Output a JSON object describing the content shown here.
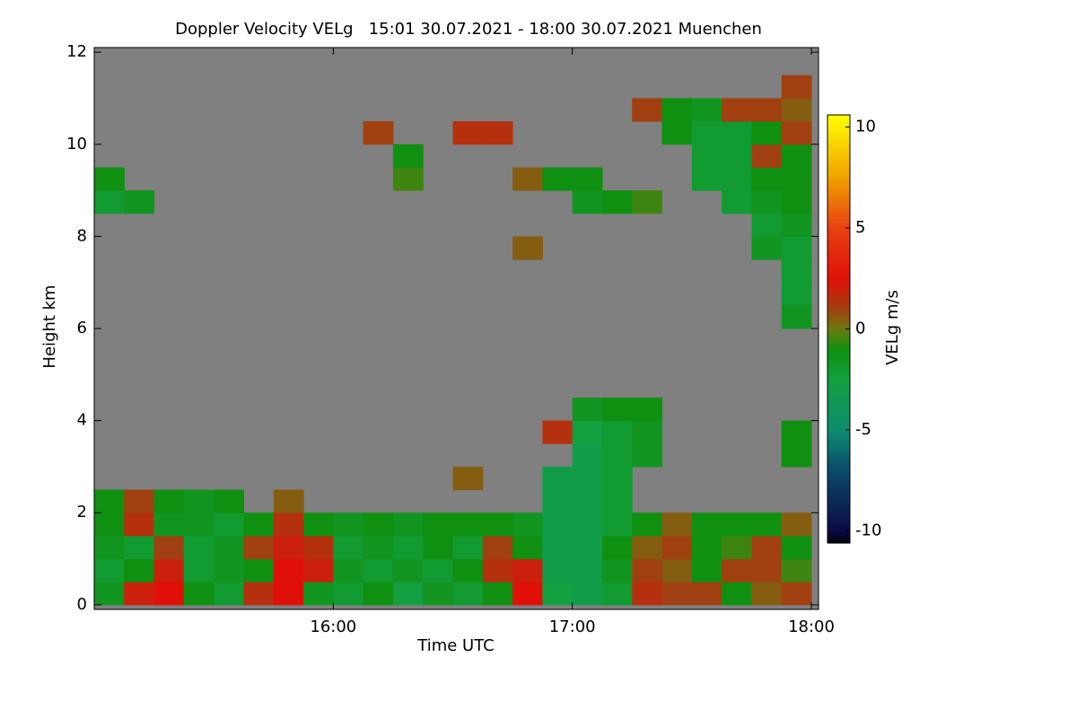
{
  "chart_data": {
    "type": "heatmap",
    "title": "Doppler Velocity VELg   15:01 30.07.2021 - 18:00 30.07.2021 Muenchen",
    "x_label": "Time UTC",
    "y_label": "Height km",
    "colorbar_label": "VELg m/s",
    "xlim": [
      15.0,
      18.03
    ],
    "ylim": [
      -0.1,
      12.1
    ],
    "xticks": [
      {
        "value": 16,
        "label": "16:00"
      },
      {
        "value": 17,
        "label": "17:00"
      },
      {
        "value": 18,
        "label": "18:00"
      }
    ],
    "yticks": [
      0,
      2,
      4,
      6,
      8,
      10,
      12
    ],
    "clim": [
      -10.6,
      10.6
    ],
    "cticks": [
      -10,
      -5,
      0,
      5,
      10
    ],
    "nan_color": "#808080",
    "colorscale": [
      [
        -10.6,
        "#000000"
      ],
      [
        -10,
        "#0a0a45"
      ],
      [
        -7,
        "#0a4a6a"
      ],
      [
        -5,
        "#0e8c70"
      ],
      [
        -2.5,
        "#12a040"
      ],
      [
        -1,
        "#109010"
      ],
      [
        0,
        "#6a7a10"
      ],
      [
        1,
        "#a04010"
      ],
      [
        2.5,
        "#e01008"
      ],
      [
        5,
        "#e84010"
      ],
      [
        7.5,
        "#f0a000"
      ],
      [
        10.6,
        "#ffff00"
      ]
    ],
    "x": [
      15.0625,
      15.1875,
      15.3125,
      15.4375,
      15.5625,
      15.6875,
      15.8125,
      15.9375,
      16.0625,
      16.1875,
      16.3125,
      16.4375,
      16.5625,
      16.6875,
      16.8125,
      16.9375,
      17.0625,
      17.1875,
      17.3125,
      17.4375,
      17.5625,
      17.6875,
      17.8125,
      17.9375
    ],
    "y": [
      0.25,
      0.75,
      1.25,
      1.75,
      2.25,
      2.75,
      3.25,
      3.75,
      4.25,
      4.75,
      5.25,
      5.75,
      6.25,
      6.75,
      7.25,
      7.75,
      8.25,
      8.75,
      9.25,
      9.75,
      10.25,
      10.75,
      11.25,
      11.75
    ],
    "z": [
      [
        -1.5,
        2,
        2.5,
        -1,
        -2,
        1.5,
        2.5,
        -1.5,
        -2,
        -1,
        -2.5,
        -1.5,
        -2,
        -1,
        2.5,
        -2.5,
        -3,
        -2,
        1.5,
        1,
        1,
        -1,
        0.5,
        1
      ],
      [
        -2,
        -1,
        2,
        -2,
        -1.5,
        -1,
        2.5,
        2,
        -1.5,
        -2,
        -1.5,
        -2,
        -1,
        1.5,
        2,
        -3,
        -3,
        -1.5,
        1,
        0.5,
        -1,
        1,
        1,
        -0.5
      ],
      [
        -1.5,
        -2,
        1,
        -2,
        -1.5,
        1,
        2,
        1.5,
        -2,
        -1.5,
        -2,
        -1,
        -2,
        1,
        -1,
        -3,
        -3,
        -1,
        0.5,
        1,
        -1,
        -0.5,
        1,
        -1
      ],
      [
        -1,
        1.5,
        -1.5,
        -1.5,
        -2,
        -1,
        1.5,
        -1,
        -1.5,
        -1,
        -1.5,
        -1,
        -1,
        -1,
        -1.5,
        -3,
        -3,
        -2,
        -1,
        0.5,
        -1,
        -1,
        -1,
        0.5
      ],
      [
        -1,
        1,
        -1,
        -1.5,
        -1,
        null,
        0.5,
        null,
        null,
        null,
        null,
        null,
        null,
        null,
        null,
        -3,
        -3,
        -2,
        null,
        null,
        null,
        null,
        null,
        null
      ],
      [
        null,
        null,
        null,
        null,
        null,
        null,
        null,
        null,
        null,
        null,
        null,
        null,
        0.5,
        null,
        null,
        -3,
        -3,
        -2,
        null,
        null,
        null,
        null,
        null,
        null
      ],
      [
        null,
        null,
        null,
        null,
        null,
        null,
        null,
        null,
        null,
        null,
        null,
        null,
        null,
        null,
        null,
        null,
        -3,
        -2,
        -1.5,
        null,
        null,
        null,
        null,
        -1
      ],
      [
        null,
        null,
        null,
        null,
        null,
        null,
        null,
        null,
        null,
        null,
        null,
        null,
        null,
        null,
        null,
        1.5,
        -2.5,
        -2,
        -1.5,
        null,
        null,
        null,
        null,
        -1
      ],
      [
        null,
        null,
        null,
        null,
        null,
        null,
        null,
        null,
        null,
        null,
        null,
        null,
        null,
        null,
        null,
        null,
        -1.5,
        -1,
        -1,
        null,
        null,
        null,
        null,
        null
      ],
      [
        null,
        null,
        null,
        null,
        null,
        null,
        null,
        null,
        null,
        null,
        null,
        null,
        null,
        null,
        null,
        null,
        null,
        null,
        null,
        null,
        null,
        null,
        null,
        null
      ],
      [
        null,
        null,
        null,
        null,
        null,
        null,
        null,
        null,
        null,
        null,
        null,
        null,
        null,
        null,
        null,
        null,
        null,
        null,
        null,
        null,
        null,
        null,
        null,
        null
      ],
      [
        null,
        null,
        null,
        null,
        null,
        null,
        null,
        null,
        null,
        null,
        null,
        null,
        null,
        null,
        null,
        null,
        null,
        null,
        null,
        null,
        null,
        null,
        null,
        null
      ],
      [
        null,
        null,
        null,
        null,
        null,
        null,
        null,
        null,
        null,
        null,
        null,
        null,
        null,
        null,
        null,
        null,
        null,
        null,
        null,
        null,
        null,
        null,
        null,
        -1.5
      ],
      [
        null,
        null,
        null,
        null,
        null,
        null,
        null,
        null,
        null,
        null,
        null,
        null,
        null,
        null,
        null,
        null,
        null,
        null,
        null,
        null,
        null,
        null,
        null,
        -2
      ],
      [
        null,
        null,
        null,
        null,
        null,
        null,
        null,
        null,
        null,
        null,
        null,
        null,
        null,
        null,
        null,
        null,
        null,
        null,
        null,
        null,
        null,
        null,
        null,
        -2
      ],
      [
        null,
        null,
        null,
        null,
        null,
        null,
        null,
        null,
        null,
        null,
        null,
        null,
        null,
        null,
        0.5,
        null,
        null,
        null,
        null,
        null,
        null,
        null,
        -1.5,
        -2
      ],
      [
        null,
        null,
        null,
        null,
        null,
        null,
        null,
        null,
        null,
        null,
        null,
        null,
        null,
        null,
        null,
        null,
        null,
        null,
        null,
        null,
        null,
        null,
        -2,
        -1.5
      ],
      [
        -2,
        -1.5,
        null,
        null,
        null,
        null,
        null,
        null,
        null,
        null,
        null,
        null,
        null,
        null,
        null,
        null,
        -1.5,
        -1,
        -0.5,
        null,
        null,
        -2,
        -1.5,
        -1
      ],
      [
        -1,
        null,
        null,
        null,
        null,
        null,
        null,
        null,
        null,
        null,
        -0.5,
        null,
        null,
        null,
        0.5,
        -1,
        -1,
        null,
        null,
        null,
        -2,
        -2,
        -1,
        -1
      ],
      [
        null,
        null,
        null,
        null,
        null,
        null,
        null,
        null,
        null,
        null,
        -1,
        null,
        null,
        null,
        null,
        null,
        null,
        null,
        null,
        null,
        -2,
        -2,
        1,
        -1
      ],
      [
        null,
        null,
        null,
        null,
        null,
        null,
        null,
        null,
        null,
        1,
        null,
        null,
        1.5,
        1.5,
        null,
        null,
        null,
        null,
        null,
        -1,
        -2,
        -2,
        -1,
        1
      ],
      [
        null,
        null,
        null,
        null,
        null,
        null,
        null,
        null,
        null,
        null,
        null,
        null,
        null,
        null,
        null,
        null,
        null,
        null,
        1,
        -1,
        -1.5,
        1,
        1,
        0.5
      ],
      [
        null,
        null,
        null,
        null,
        null,
        null,
        null,
        null,
        null,
        null,
        null,
        null,
        null,
        null,
        null,
        null,
        null,
        null,
        null,
        null,
        null,
        null,
        null,
        1
      ],
      [
        null,
        null,
        null,
        null,
        null,
        null,
        null,
        null,
        null,
        null,
        null,
        null,
        null,
        null,
        null,
        null,
        null,
        null,
        null,
        null,
        null,
        null,
        null,
        null
      ]
    ]
  }
}
